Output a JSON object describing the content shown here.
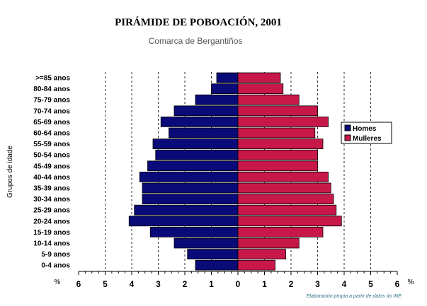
{
  "chart_data": {
    "type": "bar",
    "title": "PIRÁMIDE DE POBOACIÓN, 2001",
    "subtitle": "Comarca de Bergantiños",
    "ylabel": "Grupos de idade",
    "unit_left": "%",
    "unit_right": "%",
    "source": "Elaboración propia a partir de datos do INE",
    "xlim": [
      -6,
      6
    ],
    "tick_labels": [
      "6",
      "5",
      "4",
      "3",
      "2",
      "1",
      "0",
      "1",
      "2",
      "3",
      "4",
      "5",
      "6"
    ],
    "grid": true,
    "legend_position": "right",
    "categories": [
      ">=85 anos",
      "80-84 anos",
      "75-79 anos",
      "70-74 anos",
      "65-69 anos",
      "60-64 anos",
      "55-59 anos",
      "50-54 anos",
      "45-49 anos",
      "40-44 anos",
      "35-39 anos",
      "30-34 anos",
      "25-29 anos",
      "20-24 anos",
      "15-19 anos",
      "10-14 anos",
      "5-9 anos",
      "0-4 anos"
    ],
    "series": [
      {
        "name": "Homes",
        "color": "#0a0a78",
        "values": [
          0.8,
          1.0,
          1.6,
          2.4,
          2.9,
          2.6,
          3.2,
          3.1,
          3.4,
          3.7,
          3.6,
          3.6,
          3.9,
          4.1,
          3.3,
          2.4,
          1.9,
          1.6
        ]
      },
      {
        "name": "Mulleres",
        "color": "#c8184a",
        "values": [
          1.6,
          1.7,
          2.3,
          3.0,
          3.4,
          2.9,
          3.2,
          3.0,
          3.0,
          3.4,
          3.5,
          3.6,
          3.7,
          3.9,
          3.2,
          2.3,
          1.8,
          1.4
        ]
      }
    ]
  }
}
